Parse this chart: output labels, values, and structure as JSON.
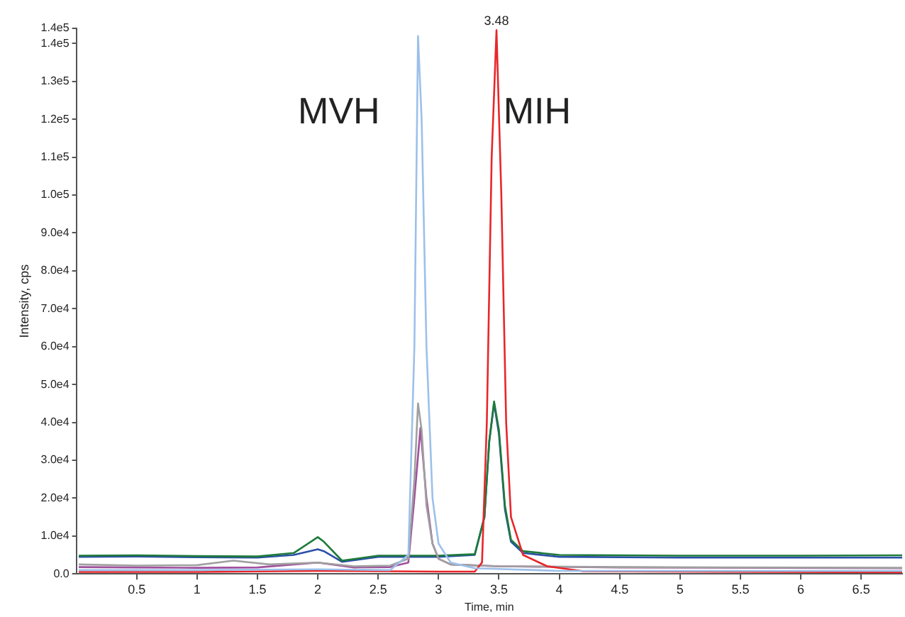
{
  "chart_data": {
    "type": "line",
    "xlabel": "Time, min",
    "ylabel": "Intensity, cps",
    "xlim": [
      0,
      6.84
    ],
    "xticks": [
      0.5,
      1.0,
      1.5,
      2.0,
      2.5,
      3.0,
      3.5,
      4.0,
      4.5,
      5.0,
      5.5,
      6.0,
      6.5
    ],
    "ylim": [
      0,
      144000
    ],
    "yticks": [
      {
        "value": 0,
        "label": "0.0"
      },
      {
        "value": 10000,
        "label": "1.0e4"
      },
      {
        "value": 20000,
        "label": "2.0e4"
      },
      {
        "value": 30000,
        "label": "3.0e4"
      },
      {
        "value": 40000,
        "label": "4.0e4"
      },
      {
        "value": 50000,
        "label": "5.0e4"
      },
      {
        "value": 60000,
        "label": "6.0e4"
      },
      {
        "value": 70000,
        "label": "7.0e4"
      },
      {
        "value": 80000,
        "label": "8.0e4"
      },
      {
        "value": 90000,
        "label": "9.0e4"
      },
      {
        "value": 100000,
        "label": "1.0e5"
      },
      {
        "value": 110000,
        "label": "1.1e5"
      },
      {
        "value": 120000,
        "label": "1.2e5"
      },
      {
        "value": 130000,
        "label": "1.3e5"
      },
      {
        "value": 140000,
        "label": "1.4e5"
      },
      {
        "value": 144000,
        "label": "1.4e5"
      }
    ],
    "grid": false,
    "legend": false,
    "marker": "none",
    "line_style": "solid",
    "annotations": [
      "MVH",
      "MIH",
      {
        "text": "3.48",
        "x": 3.48,
        "y": 143500
      }
    ],
    "series": [
      {
        "color": "#9cc0ea",
        "x": [
          0.02,
          1.0,
          2.0,
          2.6,
          2.75,
          2.8,
          2.83,
          2.86,
          2.9,
          2.95,
          3.0,
          3.1,
          3.3,
          4.0,
          6.84
        ],
        "values": [
          1000,
          1000,
          1200,
          1000,
          5000,
          60000,
          142000,
          120000,
          60000,
          20000,
          8000,
          3000,
          1500,
          800,
          800
        ]
      },
      {
        "color": "#e8262a",
        "x": [
          0.02,
          1.0,
          2.0,
          3.0,
          3.3,
          3.36,
          3.4,
          3.44,
          3.48,
          3.52,
          3.56,
          3.6,
          3.7,
          3.9,
          4.2,
          6.84
        ],
        "values": [
          500,
          500,
          800,
          600,
          600,
          3000,
          40000,
          110000,
          143500,
          100000,
          40000,
          15000,
          5000,
          2000,
          700,
          400
        ]
      },
      {
        "color": "#a0a0a0",
        "x": [
          0.02,
          0.5,
          1.0,
          1.3,
          1.6,
          2.0,
          2.3,
          2.6,
          2.75,
          2.8,
          2.83,
          2.86,
          2.9,
          2.95,
          3.0,
          3.1,
          3.5,
          4.5,
          6.84
        ],
        "values": [
          2500,
          2200,
          2300,
          3500,
          2500,
          3000,
          2000,
          2200,
          4000,
          25000,
          45000,
          38000,
          18000,
          8000,
          4000,
          2500,
          2000,
          1800,
          1600
        ]
      },
      {
        "color": "#a0509c",
        "x": [
          0.02,
          0.5,
          1.0,
          1.5,
          2.0,
          2.3,
          2.6,
          2.75,
          2.8,
          2.85,
          2.9,
          2.95,
          3.0,
          3.1,
          3.5,
          4.5,
          6.84
        ],
        "values": [
          1800,
          1700,
          1600,
          1700,
          3000,
          1700,
          1800,
          3000,
          20000,
          38500,
          20000,
          8000,
          4000,
          2500,
          2000,
          1700,
          1500
        ]
      },
      {
        "color": "#1e7a3a",
        "x": [
          0.02,
          0.5,
          1.0,
          1.5,
          1.8,
          2.0,
          2.05,
          2.2,
          2.5,
          3.0,
          3.3,
          3.38,
          3.42,
          3.46,
          3.5,
          3.55,
          3.6,
          3.7,
          4.0,
          5.0,
          6.0,
          6.84
        ],
        "values": [
          4800,
          4900,
          4700,
          4600,
          5500,
          9700,
          8500,
          3500,
          4800,
          4800,
          5200,
          15000,
          35000,
          45500,
          38000,
          18000,
          9000,
          6000,
          5000,
          4800,
          4800,
          4900
        ]
      },
      {
        "color": "#2a4fa8",
        "x": [
          0.02,
          0.5,
          1.0,
          1.5,
          1.8,
          2.0,
          2.05,
          2.2,
          2.5,
          3.0,
          3.3,
          3.38,
          3.42,
          3.46,
          3.5,
          3.55,
          3.6,
          3.7,
          4.0,
          5.0,
          6.0,
          6.84
        ],
        "values": [
          4500,
          4600,
          4400,
          4300,
          5000,
          6500,
          6000,
          3200,
          4500,
          4500,
          5000,
          15000,
          35000,
          45000,
          37000,
          17000,
          8500,
          5500,
          4500,
          4300,
          4300,
          4300
        ]
      }
    ]
  }
}
